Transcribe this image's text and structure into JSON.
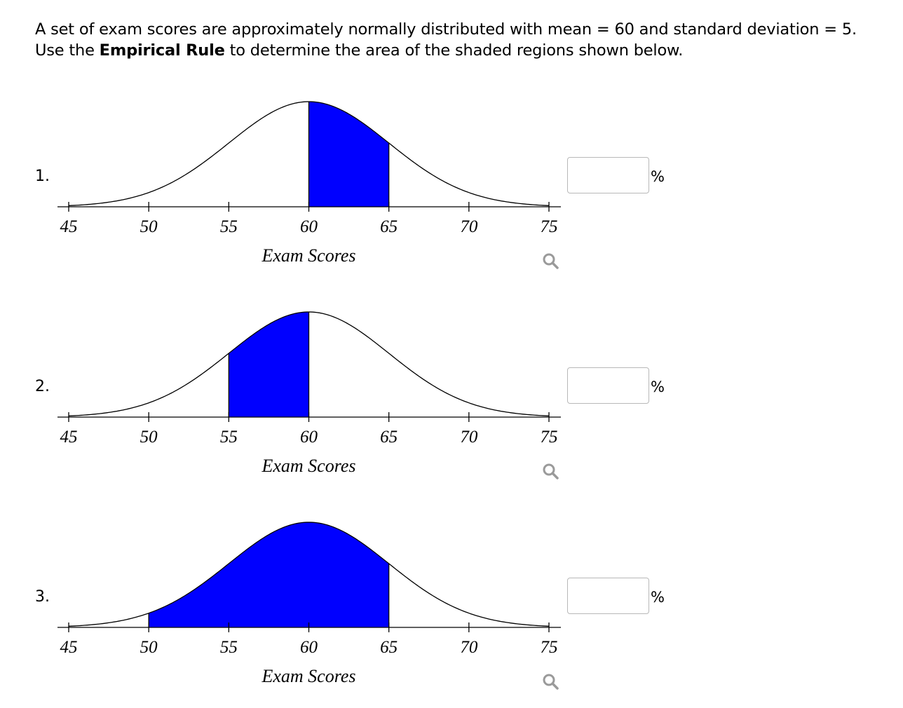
{
  "question": {
    "line1": "A set of exam scores are approximately normally distributed with mean = 60 and standard deviation = 5.",
    "line2_prefix": "Use the ",
    "line2_bold": "Empirical Rule",
    "line2_suffix": " to determine the area of the shaded regions shown below."
  },
  "colors": {
    "shade": "#0000ff",
    "curve": "#000000",
    "zoom_icon": "#9a9a9a",
    "input_border": "#b8b8b8"
  },
  "icons": {
    "zoom": "magnifier-icon"
  },
  "problems": [
    {
      "number": "1.",
      "answer_value": "",
      "unit": "%",
      "chart_data": {
        "type": "area",
        "distribution": "normal",
        "mean": 60,
        "sd": 5,
        "x_range": [
          45,
          75
        ],
        "x_ticks": [
          "45",
          "50",
          "55",
          "60",
          "65",
          "70",
          "75"
        ],
        "xlabel": "Exam Scores",
        "shaded_interval": [
          60,
          65
        ]
      }
    },
    {
      "number": "2.",
      "answer_value": "",
      "unit": "%",
      "chart_data": {
        "type": "area",
        "distribution": "normal",
        "mean": 60,
        "sd": 5,
        "x_range": [
          45,
          75
        ],
        "x_ticks": [
          "45",
          "50",
          "55",
          "60",
          "65",
          "70",
          "75"
        ],
        "xlabel": "Exam Scores",
        "shaded_interval": [
          55,
          60
        ]
      }
    },
    {
      "number": "3.",
      "answer_value": "",
      "unit": "%",
      "chart_data": {
        "type": "area",
        "distribution": "normal",
        "mean": 60,
        "sd": 5,
        "x_range": [
          45,
          75
        ],
        "x_ticks": [
          "45",
          "50",
          "55",
          "60",
          "65",
          "70",
          "75"
        ],
        "xlabel": "Exam Scores",
        "shaded_interval": [
          50,
          65
        ]
      }
    }
  ]
}
